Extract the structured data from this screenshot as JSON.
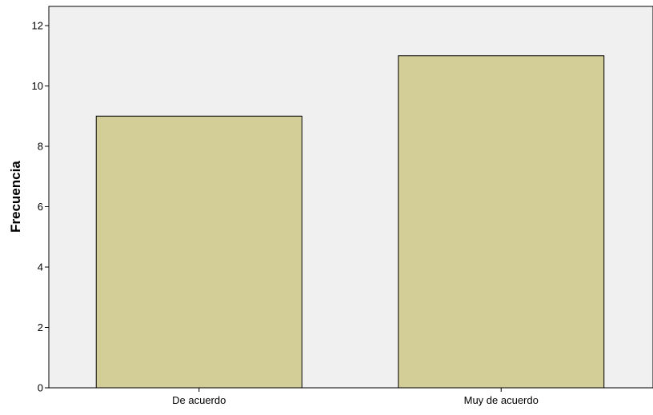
{
  "colors": {
    "plot_background": "#f0f0f0",
    "bar_fill": "#d3ce97",
    "bar_stroke": "#000000",
    "axis": "#000000"
  },
  "chart_data": {
    "type": "bar",
    "categories": [
      "De acuerdo",
      "Muy de acuerdo"
    ],
    "values": [
      9,
      11
    ],
    "title": "",
    "xlabel": "",
    "ylabel": "Frecuencia",
    "ylim": [
      0,
      12
    ],
    "yticks": [
      0,
      2,
      4,
      6,
      8,
      10,
      12
    ],
    "grid": false,
    "legend": "none"
  }
}
